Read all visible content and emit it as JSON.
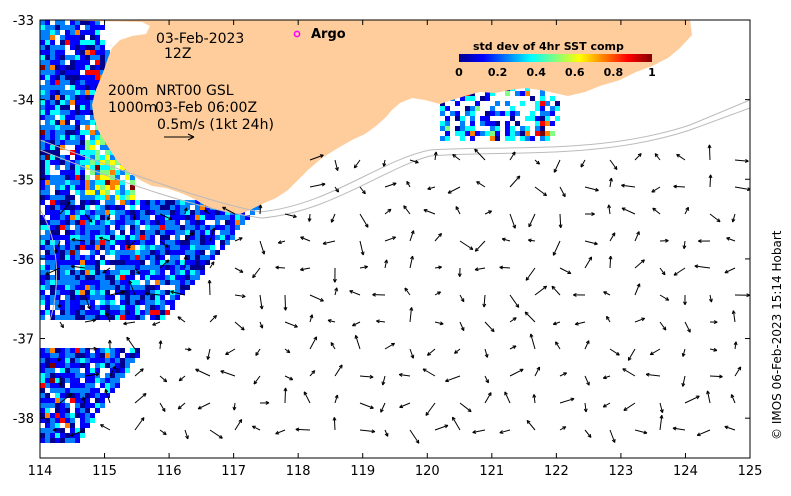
{
  "map": {
    "lon_range": [
      114,
      125
    ],
    "lat_range": [
      -38.5,
      -33
    ],
    "x_ticks": [
      "114",
      "115",
      "116",
      "117",
      "118",
      "119",
      "120",
      "121",
      "122",
      "123",
      "124",
      "125"
    ],
    "y_ticks": [
      "-33",
      "-34",
      "-35",
      "-36",
      "-37",
      "-38"
    ],
    "colors": {
      "land": "#fecd9b",
      "ocean": "#ffffff",
      "frame": "#000000",
      "argo_marker": "#ff00ff",
      "contour": "#bbbbbb"
    }
  },
  "annotations": {
    "date": "03-Feb-2023",
    "time": "12Z",
    "argo_label": "Argo",
    "depth_200": "200m",
    "depth_1000": "1000m",
    "product": "NRT00 GSL",
    "product_time": "03-Feb 06:00Z",
    "scale_vector": "0.5m/s (1kt 24h)"
  },
  "colorbar": {
    "title": "std dev of 4hr SST comp",
    "ticks": [
      "0",
      "0.2",
      "0.4",
      "0.6",
      "0.8",
      "1"
    ],
    "colors": [
      "#00008f",
      "#0000ff",
      "#0080ff",
      "#00ffff",
      "#80ff80",
      "#ffff00",
      "#ff8000",
      "#ff0000",
      "#800000"
    ]
  },
  "credit": "© IMOS 06-Feb-2023 15:14 Hobart"
}
